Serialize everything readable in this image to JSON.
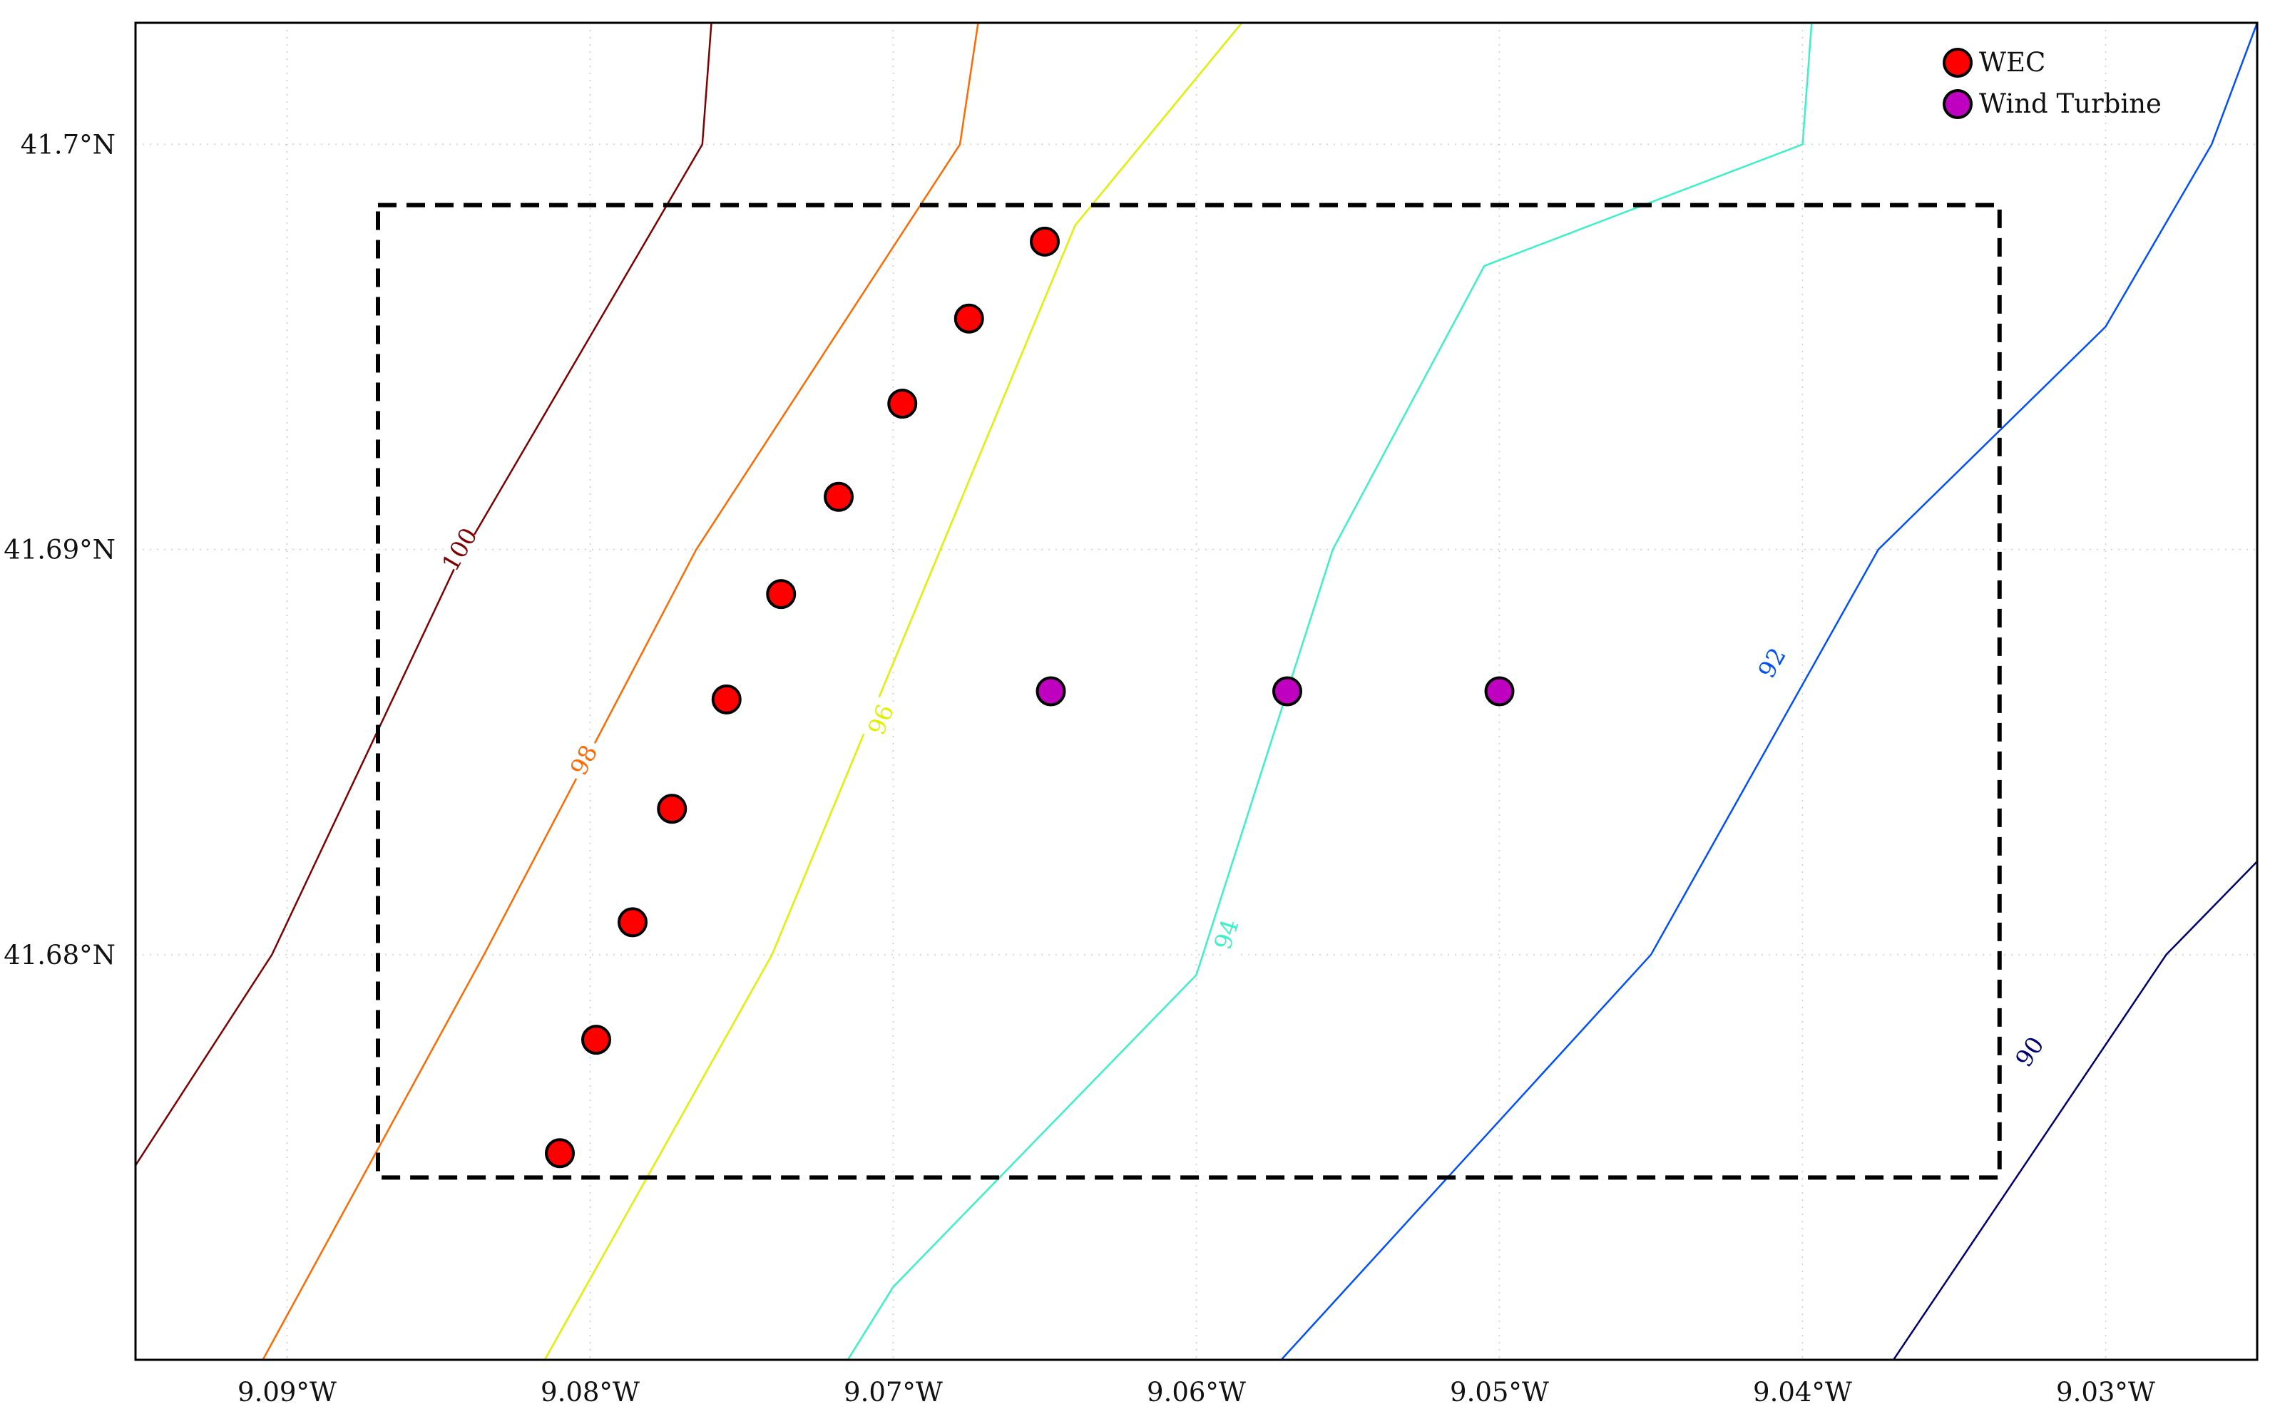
{
  "chart_data": {
    "type": "scatter",
    "title": "",
    "xlabel": "",
    "ylabel": "",
    "xlim": [
      -9.095,
      -9.025
    ],
    "ylim": [
      41.67,
      41.703
    ],
    "grid": true,
    "legend_placement": "top-right",
    "x_ticks": [
      {
        "value": -9.09,
        "label": "9.09°W"
      },
      {
        "value": -9.08,
        "label": "9.08°W"
      },
      {
        "value": -9.07,
        "label": "9.07°W"
      },
      {
        "value": -9.06,
        "label": "9.06°W"
      },
      {
        "value": -9.05,
        "label": "9.05°W"
      },
      {
        "value": -9.04,
        "label": "9.04°W"
      },
      {
        "value": -9.03,
        "label": "9.03°W"
      }
    ],
    "y_ticks": [
      {
        "value": 41.68,
        "label": "41.68°N"
      },
      {
        "value": 41.69,
        "label": "41.69°N"
      },
      {
        "value": 41.7,
        "label": "41.7°N"
      }
    ],
    "series": [
      {
        "name": "WEC",
        "color": "#ff0000",
        "x": [
          -9.081,
          -9.0798,
          -9.0786,
          -9.0773,
          -9.0755,
          -9.0737,
          -9.0718,
          -9.0697,
          -9.0675,
          -9.065
        ],
        "y": [
          41.6751,
          41.6779,
          41.6808,
          41.6836,
          41.6863,
          41.6889,
          41.6913,
          41.6936,
          41.6957,
          41.6976
        ]
      },
      {
        "name": "Wind Turbine",
        "color": "#c000c0",
        "x": [
          -9.0648,
          -9.057,
          -9.05
        ],
        "y": [
          41.6865,
          41.6865,
          41.6865
        ]
      }
    ],
    "region_box": {
      "x": [
        -9.087,
        -9.0335
      ],
      "y": [
        41.6745,
        41.6985
      ],
      "style": "dashed"
    },
    "contours": [
      {
        "level": "100",
        "color": "#800000",
        "points": [
          [
            -9.095,
            41.6748
          ],
          [
            -9.0905,
            41.68
          ],
          [
            -9.0845,
            41.6895
          ],
          [
            -9.0763,
            41.7
          ],
          [
            -9.076,
            41.703
          ]
        ],
        "label_at": [
          -9.0843,
          41.69
        ]
      },
      {
        "level": "98",
        "color": "#ff6a00",
        "points": [
          [
            -9.0908,
            41.67
          ],
          [
            -9.0835,
            41.68
          ],
          [
            -9.0765,
            41.69
          ],
          [
            -9.0678,
            41.7
          ],
          [
            -9.0672,
            41.703
          ]
        ],
        "label_at": [
          -9.0802,
          41.6848
        ]
      },
      {
        "level": "96",
        "color": "#e0f000",
        "points": [
          [
            -9.0815,
            41.67
          ],
          [
            -9.074,
            41.68
          ],
          [
            -9.069,
            41.689
          ],
          [
            -9.064,
            41.698
          ],
          [
            -9.0585,
            41.703
          ]
        ],
        "label_at": [
          -9.0704,
          41.6858
        ]
      },
      {
        "level": "94",
        "color": "#3cf0c8",
        "points": [
          [
            -9.0715,
            41.67
          ],
          [
            -9.07,
            41.6718
          ],
          [
            -9.06,
            41.6795
          ],
          [
            -9.0555,
            41.69
          ],
          [
            -9.0505,
            41.697
          ],
          [
            -9.04,
            41.7
          ],
          [
            -9.0397,
            41.703
          ]
        ],
        "label_at": [
          -9.059,
          41.6805
        ]
      },
      {
        "level": "92",
        "color": "#0050ff",
        "points": [
          [
            -9.0572,
            41.67
          ],
          [
            -9.045,
            41.68
          ],
          [
            -9.0375,
            41.69
          ],
          [
            -9.03,
            41.6955
          ],
          [
            -9.0265,
            41.7
          ],
          [
            -9.025,
            41.703
          ]
        ],
        "label_at": [
          -9.041,
          41.6872
        ]
      },
      {
        "level": "90",
        "color": "#000070",
        "points": [
          [
            -9.037,
            41.67
          ],
          [
            -9.028,
            41.68
          ],
          [
            -9.025,
            41.6823
          ]
        ],
        "label_at": [
          -9.0325,
          41.6776
        ]
      }
    ]
  }
}
